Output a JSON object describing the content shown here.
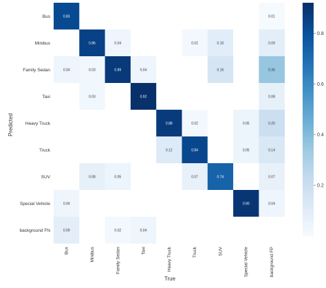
{
  "chart_data": {
    "type": "heatmap",
    "title": "",
    "xlabel": "True",
    "ylabel": "Predicted",
    "row_labels": [
      "Bus",
      "Minibus",
      "Family Sedan",
      "Taxi",
      "Heavy Truck",
      "Truck",
      "SUV",
      "Special Vehicle",
      "background FN"
    ],
    "col_labels": [
      "Bus",
      "Minibus",
      "Family Sedan",
      "Taxi",
      "Heavy Truck",
      "Truck",
      "SUV",
      "Special Vehicle",
      "background FP"
    ],
    "values": [
      [
        0.83,
        null,
        null,
        null,
        null,
        null,
        null,
        null,
        0.01
      ],
      [
        null,
        0.86,
        0.04,
        null,
        null,
        0.02,
        0.1,
        null,
        0.09
      ],
      [
        0.04,
        0.03,
        0.89,
        0.04,
        null,
        null,
        0.16,
        null,
        0.36
      ],
      [
        null,
        0.03,
        null,
        0.92,
        null,
        null,
        null,
        null,
        0.08
      ],
      [
        null,
        null,
        null,
        null,
        0.88,
        0.02,
        null,
        0.05,
        0.2
      ],
      [
        null,
        null,
        null,
        null,
        0.12,
        0.84,
        null,
        0.05,
        0.14
      ],
      [
        null,
        0.08,
        0.05,
        null,
        null,
        0.07,
        0.74,
        null,
        0.07
      ],
      [
        0.04,
        null,
        null,
        null,
        null,
        null,
        null,
        0.9,
        0.04
      ],
      [
        0.09,
        null,
        0.02,
        0.04,
        null,
        null,
        null,
        null,
        null
      ]
    ],
    "colorbar": {
      "min": 0.0,
      "max": 0.92,
      "ticks": [
        0.2,
        0.4,
        0.6,
        0.8
      ],
      "tick_labels": [
        "0.2",
        "0.4",
        "0.6",
        "0.8"
      ]
    },
    "colormap": "Blues",
    "colors": {
      "low": "#f7fbff",
      "high": "#08306b"
    },
    "grid": false,
    "legend": "colorbar-right"
  }
}
